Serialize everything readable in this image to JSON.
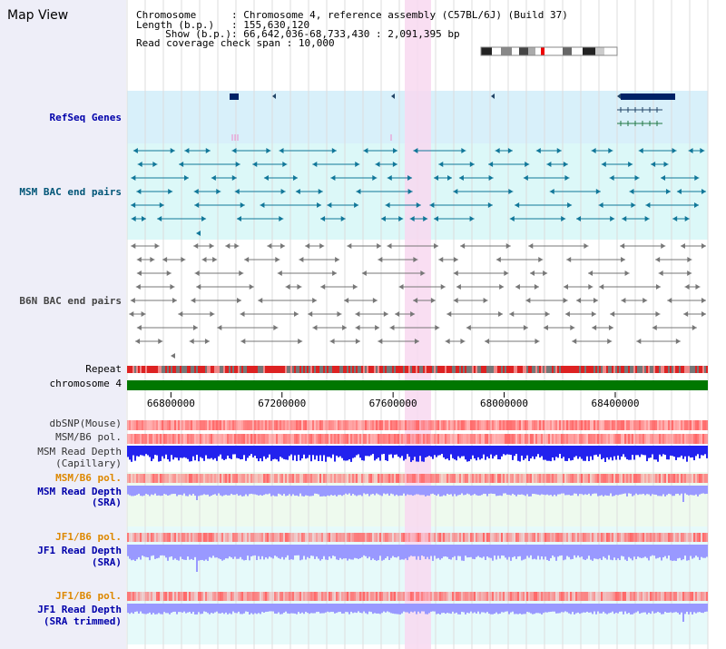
{
  "title": "Map View",
  "header": {
    "chromosome_label": "Chromosome",
    "chromosome_value": "Chromosome 4, reference assembly (C57BL/6J) (Build 37)",
    "length_label": "Length (b.p.)",
    "length_value": "155,630,120",
    "show_label": "Show (b.p.)",
    "show_value": "66,642,036-68,733,430 : 2,091,395 bp",
    "coverage_label": "Read coverage check span",
    "coverage_value": "10,000"
  },
  "tracks": {
    "refseq": "RefSeq Genes",
    "msm_bac": "MSM BAC end pairs",
    "b6n_bac": "B6N BAC end pairs",
    "repeat": "Repeat",
    "chromosome": "chromosome 4",
    "dbsnp": "dbSNP(Mouse)",
    "msm_b6_pol_1": "MSM/B6 pol.",
    "msm_depth_cap_1": "MSM Read Depth",
    "msm_depth_cap_2": "(Capillary)",
    "msm_b6_pol_2": "MSM/B6 pol.",
    "msm_depth_sra_1": "MSM Read Depth",
    "msm_depth_sra_2": "(SRA)",
    "jf1_b6_pol_1": "JF1/B6 pol.",
    "jf1_depth_sra_1": "JF1 Read Depth",
    "jf1_depth_sra_2": "(SRA)",
    "jf1_b6_pol_2": "JF1/B6 pol.",
    "jf1_depth_trim_1": "JF1 Read Depth",
    "jf1_depth_trim_2": "(SRA trimmed)"
  },
  "axis": {
    "ticks": [
      "66800000",
      "67200000",
      "67600000",
      "68000000",
      "68400000"
    ],
    "tick_values": [
      66800000,
      67200000,
      67600000,
      68000000,
      68400000
    ],
    "range": [
      66642036,
      68733430
    ]
  },
  "colors": {
    "refseq_bg": "#d8f0fa",
    "msm_bg": "#dcf8f8",
    "highlight": "#f8d8f0",
    "chromosome_bar": "#007700",
    "snp": "#ff6666",
    "depth_cap": "#2222ee",
    "depth_sra": "#9999ff"
  }
}
